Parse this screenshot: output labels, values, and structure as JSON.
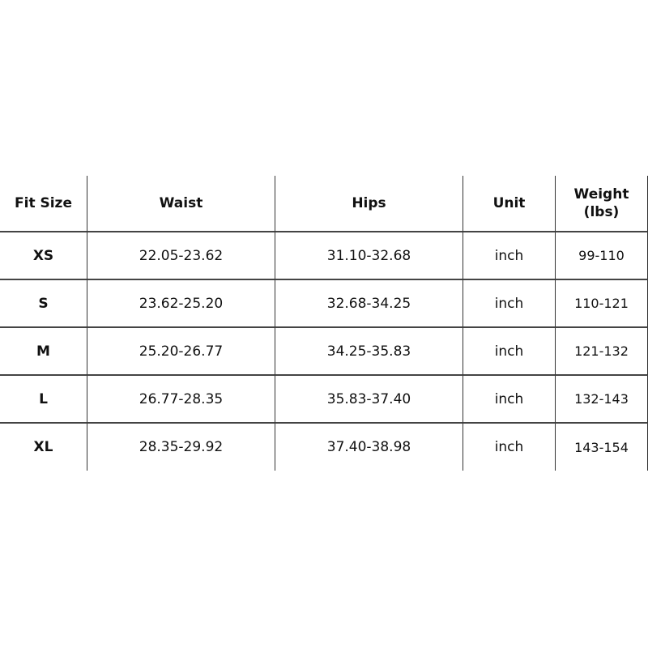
{
  "table": {
    "headers": [
      "Fit Size",
      "Waist",
      "Hips",
      "Unit",
      "Weight (lbs)"
    ],
    "weight_header_lines": [
      "Weight",
      "(lbs)"
    ],
    "rows": [
      [
        "XS",
        "22.05-23.62",
        "31.10-32.68",
        "inch",
        "99-110"
      ],
      [
        "S",
        "23.62-25.20",
        "32.68-34.25",
        "inch",
        "110-121"
      ],
      [
        "M",
        "25.20-26.77",
        "34.25-35.83",
        "inch",
        "121-132"
      ],
      [
        "L",
        "26.77-28.35",
        "35.83-37.40",
        "inch",
        "132-143"
      ],
      [
        "XL",
        "28.35-29.92",
        "37.40-38.98",
        "inch",
        "143-154"
      ]
    ]
  }
}
